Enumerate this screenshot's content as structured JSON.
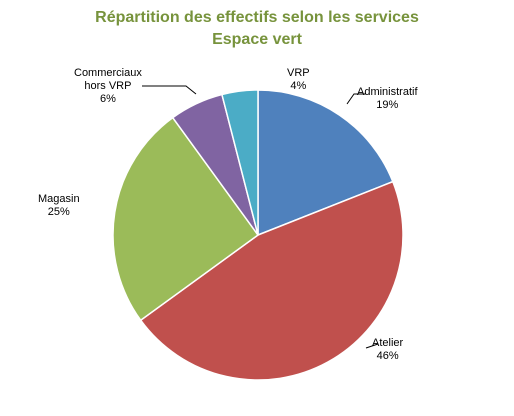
{
  "chart_data": {
    "type": "pie",
    "title": "Répartition des effectifs selon les services",
    "subtitle": "Espace vert",
    "slices": [
      {
        "label": "Administratif",
        "value": 19,
        "display": "19%",
        "color": "#4f81bd"
      },
      {
        "label": "Atelier",
        "value": 46,
        "display": "46%",
        "color": "#c0504d"
      },
      {
        "label": "Magasin",
        "value": 25,
        "display": "25%",
        "color": "#9bbb59"
      },
      {
        "label": "Commerciaux hors VRP",
        "lines": [
          "Commerciaux",
          "hors VRP"
        ],
        "value": 6,
        "display": "6%",
        "color": "#8064a2"
      },
      {
        "label": "VRP",
        "value": 4,
        "display": "4%",
        "color": "#4bacc6"
      }
    ]
  }
}
